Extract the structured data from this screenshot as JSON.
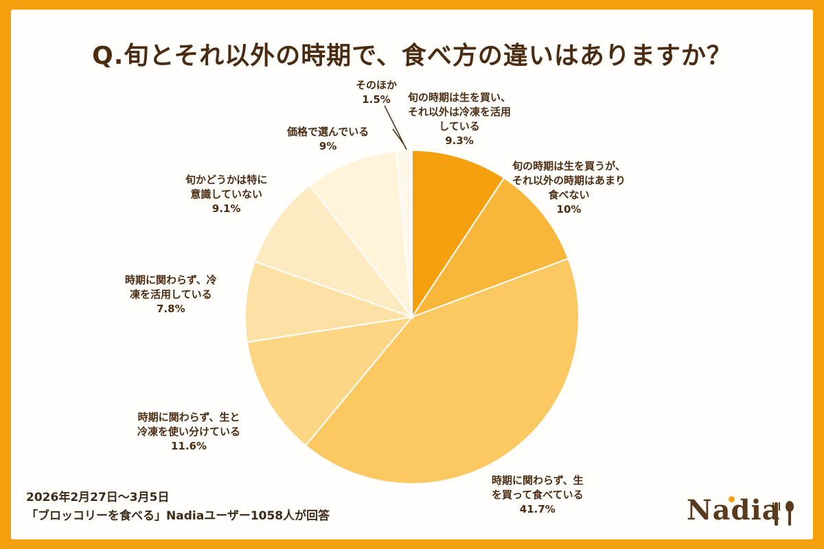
{
  "title": "Q.旬とそれ以外の時期で、食べ方の違いはありますか？",
  "footnote": {
    "line1": "2026年2月27日〜3月5日",
    "line2": "「ブロッコリーを食べる」Nadiaユーザー1058人が回答"
  },
  "logo": "Nadia",
  "logo_icon": "fork-spoon-icon",
  "chart_data": {
    "type": "pie",
    "title": "Q.旬とそれ以外の時期で、食べ方の違いはありますか？",
    "start": "12 o'clock",
    "direction": "clockwise",
    "slices": [
      {
        "label": "旬の時期は生を買い、\nそれ以外は冷凍を活用\nしている",
        "value": 9.3,
        "display": "9.3%",
        "color": "#f5a00f"
      },
      {
        "label": "旬の時期は生を買うが、\nそれ以外の時期はあまり\n食べない",
        "value": 10,
        "display": "10%",
        "color": "#f8b63a"
      },
      {
        "label": "時期に関わらず、生\nを買って食べている",
        "value": 41.7,
        "display": "41.7%",
        "color": "#fbc862"
      },
      {
        "label": "時期に関わらず、生と\n冷凍を使い分けている",
        "value": 11.6,
        "display": "11.6%",
        "color": "#fcd585"
      },
      {
        "label": "時期に関わらず、冷\n凍を活用している",
        "value": 7.8,
        "display": "7.8%",
        "color": "#fde0a3"
      },
      {
        "label": "旬かどうかは特に\n意識していない",
        "value": 9.1,
        "display": "9.1%",
        "color": "#feeac0"
      },
      {
        "label": "価格で選んでいる",
        "value": 9,
        "display": "9%",
        "color": "#fff3da"
      },
      {
        "label": "そのほか",
        "value": 1.5,
        "display": "1.5%",
        "color": "#fff8ea"
      }
    ]
  }
}
